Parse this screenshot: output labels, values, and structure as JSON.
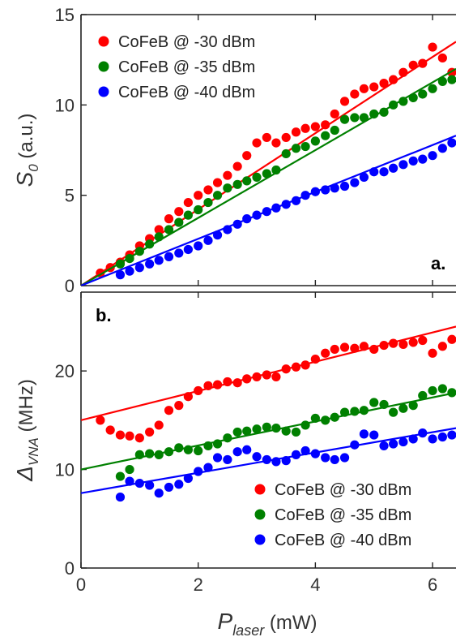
{
  "chart_data": [
    {
      "type": "scatter",
      "panel_label": "a.",
      "ylabel": {
        "main": "S",
        "sub": "0",
        "unit": "(a.u.)"
      },
      "xlabel": "",
      "xlim": [
        0,
        6.4
      ],
      "ylim": [
        0,
        15
      ],
      "xticks": [
        0,
        2,
        4,
        6
      ],
      "yticks": [
        0,
        5,
        10,
        15
      ],
      "legend_position": "top-left",
      "series": [
        {
          "name": "CoFeB @ -30 dBm",
          "color": "#ff0000",
          "fit": [
            0,
            13.5
          ],
          "x": [
            0.33,
            0.5,
            0.67,
            0.83,
            1.0,
            1.17,
            1.33,
            1.5,
            1.67,
            1.83,
            2.0,
            2.17,
            2.33,
            2.5,
            2.67,
            2.83,
            3.0,
            3.17,
            3.33,
            3.5,
            3.67,
            3.83,
            4.0,
            4.17,
            4.33,
            4.5,
            4.67,
            4.83,
            5.0,
            5.17,
            5.33,
            5.5,
            5.67,
            5.83,
            6.0,
            6.17,
            6.33
          ],
          "y": [
            0.7,
            1.0,
            1.3,
            1.7,
            2.2,
            2.6,
            3.1,
            3.7,
            4.1,
            4.6,
            5.0,
            5.3,
            5.7,
            6.1,
            6.6,
            7.2,
            7.9,
            8.2,
            7.9,
            8.2,
            8.5,
            8.7,
            8.8,
            8.9,
            9.5,
            10.2,
            10.6,
            10.9,
            11.0,
            11.2,
            11.4,
            11.8,
            12.2,
            12.3,
            13.2,
            12.6,
            11.8
          ]
        },
        {
          "name": "CoFeB @ -35 dBm",
          "color": "#008000",
          "fit": [
            0,
            12.0
          ],
          "x": [
            0.67,
            0.83,
            1.0,
            1.17,
            1.33,
            1.5,
            1.67,
            1.83,
            2.0,
            2.17,
            2.33,
            2.5,
            2.67,
            2.83,
            3.0,
            3.17,
            3.33,
            3.5,
            3.67,
            3.83,
            4.0,
            4.17,
            4.33,
            4.5,
            4.67,
            4.83,
            5.0,
            5.17,
            5.33,
            5.5,
            5.67,
            5.83,
            6.0,
            6.17,
            6.33
          ],
          "y": [
            1.2,
            1.5,
            1.9,
            2.3,
            2.7,
            3.1,
            3.5,
            3.9,
            4.2,
            4.6,
            5.0,
            5.4,
            5.6,
            5.8,
            6.0,
            6.2,
            6.4,
            7.3,
            7.6,
            7.7,
            8.0,
            8.3,
            8.6,
            9.2,
            9.3,
            9.3,
            9.5,
            9.6,
            10.0,
            10.2,
            10.4,
            10.6,
            10.9,
            11.3,
            11.4
          ]
        },
        {
          "name": "CoFeB @ -40 dBm",
          "color": "#0000ff",
          "fit": [
            0,
            8.3
          ],
          "x": [
            0.67,
            0.83,
            1.0,
            1.17,
            1.33,
            1.5,
            1.67,
            1.83,
            2.0,
            2.17,
            2.33,
            2.5,
            2.67,
            2.83,
            3.0,
            3.17,
            3.33,
            3.5,
            3.67,
            3.83,
            4.0,
            4.17,
            4.33,
            4.5,
            4.67,
            4.83,
            5.0,
            5.17,
            5.33,
            5.5,
            5.67,
            5.83,
            6.0,
            6.17,
            6.33
          ],
          "y": [
            0.6,
            0.8,
            1.0,
            1.2,
            1.4,
            1.6,
            1.8,
            2.0,
            2.2,
            2.5,
            2.8,
            3.1,
            3.4,
            3.7,
            3.9,
            4.1,
            4.3,
            4.5,
            4.7,
            5.0,
            5.2,
            5.3,
            5.4,
            5.5,
            5.7,
            6.0,
            6.3,
            6.3,
            6.5,
            6.7,
            6.9,
            7.0,
            7.2,
            7.6,
            7.9
          ]
        }
      ]
    },
    {
      "type": "scatter",
      "panel_label": "b.",
      "ylabel": {
        "main": "Δ",
        "sub": "VNA",
        "unit": "(MHz)"
      },
      "xlabel": {
        "main": "P",
        "sub": "laser",
        "unit": "(mW)"
      },
      "xlim": [
        0,
        6.4
      ],
      "ylim": [
        0,
        28
      ],
      "xticks": [
        0,
        2,
        4,
        6
      ],
      "yticks": [
        0,
        10,
        20
      ],
      "legend_position": "bottom-right",
      "series": [
        {
          "name": "CoFeB @ -30 dBm",
          "color": "#ff0000",
          "fit": [
            15.0,
            24.5
          ],
          "x": [
            0.33,
            0.5,
            0.67,
            0.83,
            1.0,
            1.17,
            1.33,
            1.5,
            1.67,
            1.83,
            2.0,
            2.17,
            2.33,
            2.5,
            2.67,
            2.83,
            3.0,
            3.17,
            3.33,
            3.5,
            3.67,
            3.83,
            4.0,
            4.17,
            4.33,
            4.5,
            4.67,
            4.83,
            5.0,
            5.17,
            5.33,
            5.5,
            5.67,
            5.83,
            6.0,
            6.17,
            6.33
          ],
          "y": [
            15.0,
            14.0,
            13.5,
            13.4,
            13.2,
            13.8,
            14.5,
            16.0,
            16.5,
            17.4,
            18.0,
            18.5,
            18.6,
            18.9,
            18.8,
            19.2,
            19.4,
            19.6,
            19.4,
            20.2,
            20.4,
            20.6,
            21.2,
            21.8,
            22.2,
            22.4,
            22.3,
            22.5,
            22.2,
            22.6,
            22.8,
            22.7,
            22.9,
            23.1,
            21.8,
            22.5,
            23.2
          ]
        },
        {
          "name": "CoFeB @ -35 dBm",
          "color": "#008000",
          "fit": [
            10.0,
            17.8
          ],
          "x": [
            0.67,
            0.83,
            1.0,
            1.17,
            1.33,
            1.5,
            1.67,
            1.83,
            2.0,
            2.17,
            2.33,
            2.5,
            2.67,
            2.83,
            3.0,
            3.17,
            3.33,
            3.5,
            3.67,
            3.83,
            4.0,
            4.17,
            4.33,
            4.5,
            4.67,
            4.83,
            5.0,
            5.17,
            5.33,
            5.5,
            5.67,
            5.83,
            6.0,
            6.17,
            6.33
          ],
          "y": [
            9.3,
            10.0,
            11.5,
            11.6,
            11.5,
            11.8,
            12.2,
            12.0,
            11.9,
            12.4,
            12.6,
            13.2,
            13.8,
            13.9,
            14.1,
            14.3,
            14.2,
            13.9,
            13.8,
            14.5,
            15.2,
            15.0,
            15.3,
            15.8,
            15.9,
            16.0,
            16.8,
            16.6,
            15.8,
            16.2,
            16.5,
            17.5,
            18.0,
            18.2,
            17.8
          ]
        },
        {
          "name": "CoFeB @ -40 dBm",
          "color": "#0000ff",
          "fit": [
            7.6,
            14.2
          ],
          "x": [
            0.67,
            0.83,
            1.0,
            1.17,
            1.33,
            1.5,
            1.67,
            1.83,
            2.0,
            2.17,
            2.33,
            2.5,
            2.67,
            2.83,
            3.0,
            3.17,
            3.33,
            3.5,
            3.67,
            3.83,
            4.0,
            4.17,
            4.33,
            4.5,
            4.67,
            4.83,
            5.0,
            5.17,
            5.33,
            5.5,
            5.67,
            5.83,
            6.0,
            6.17,
            6.33
          ],
          "y": [
            7.2,
            8.8,
            8.6,
            8.4,
            7.6,
            8.2,
            8.5,
            9.1,
            9.8,
            10.2,
            11.2,
            11.0,
            11.8,
            12.0,
            11.3,
            11.0,
            10.8,
            10.9,
            11.5,
            11.9,
            11.6,
            11.2,
            11.0,
            11.2,
            12.5,
            13.6,
            13.5,
            12.4,
            12.6,
            12.8,
            13.1,
            13.7,
            13.1,
            13.3,
            13.5
          ]
        }
      ]
    }
  ]
}
